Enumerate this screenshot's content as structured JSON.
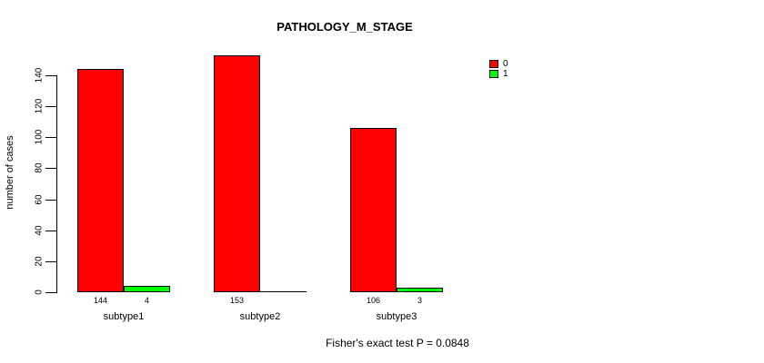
{
  "chart_data": {
    "type": "bar",
    "title": "PATHOLOGY_M_STAGE",
    "xlabel": "",
    "ylabel": "number of cases",
    "categories": [
      "subtype1",
      "subtype2",
      "subtype3"
    ],
    "series": [
      {
        "name": "0",
        "color": "#ff0000",
        "values": [
          144,
          153,
          106
        ]
      },
      {
        "name": "1",
        "color": "#00ff00",
        "values": [
          4,
          0,
          3
        ]
      }
    ],
    "y_ticks": [
      0,
      20,
      40,
      60,
      80,
      100,
      120,
      140
    ],
    "ylim": [
      0,
      153
    ],
    "grid": false,
    "legend_position": "top-right",
    "bar_value_labels_shown": true,
    "annotation": "Fisher's exact test P = 0.0848"
  },
  "colors": {
    "background": "#ffffff",
    "axis": "#000000",
    "text": "#000000"
  }
}
